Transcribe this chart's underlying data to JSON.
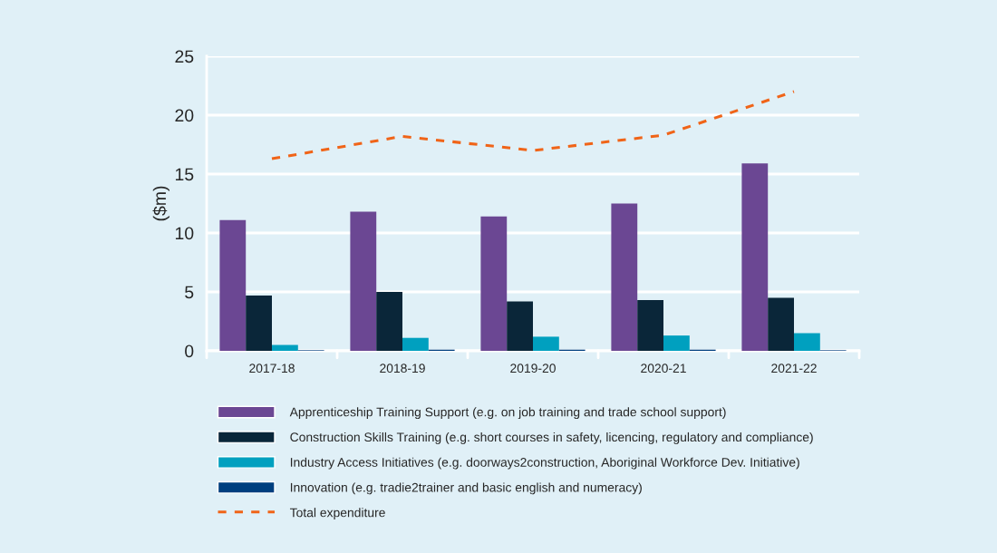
{
  "chart_data": {
    "type": "bar",
    "ylabel": "($m)",
    "categories": [
      "2017-18",
      "2018-19",
      "2019-20",
      "2020-21",
      "2021-22"
    ],
    "series": [
      {
        "name": "Apprenticeship Training Support (e.g. on job training and trade school support)",
        "color": "#6b4793",
        "values": [
          11.1,
          11.8,
          11.4,
          12.5,
          15.9
        ]
      },
      {
        "name": "Construction Skills Training (e.g. short courses in safety, licencing, regulatory and compliance)",
        "color": "#0a2639",
        "values": [
          4.7,
          5.0,
          4.2,
          4.3,
          4.5
        ]
      },
      {
        "name": "Industry Access Initiatives (e.g. doorways2construction, Aboriginal Workforce Dev. Initiative)",
        "color": "#00a0bf",
        "values": [
          0.5,
          1.1,
          1.2,
          1.3,
          1.5
        ]
      },
      {
        "name": "Innovation (e.g. tradie2trainer and basic english and numeracy)",
        "color": "#003f7f",
        "values": [
          0.05,
          0.1,
          0.1,
          0.1,
          0.05
        ]
      },
      {
        "name": "Total expenditure",
        "type": "line",
        "color": "#f06418",
        "line_style": "dashed",
        "values": [
          16.3,
          18.2,
          17.0,
          18.3,
          22.0
        ]
      }
    ],
    "ylim": [
      0,
      25
    ],
    "yticks": [
      0,
      5,
      10,
      15,
      20,
      25
    ],
    "grid": "y",
    "legend": "bottom"
  }
}
